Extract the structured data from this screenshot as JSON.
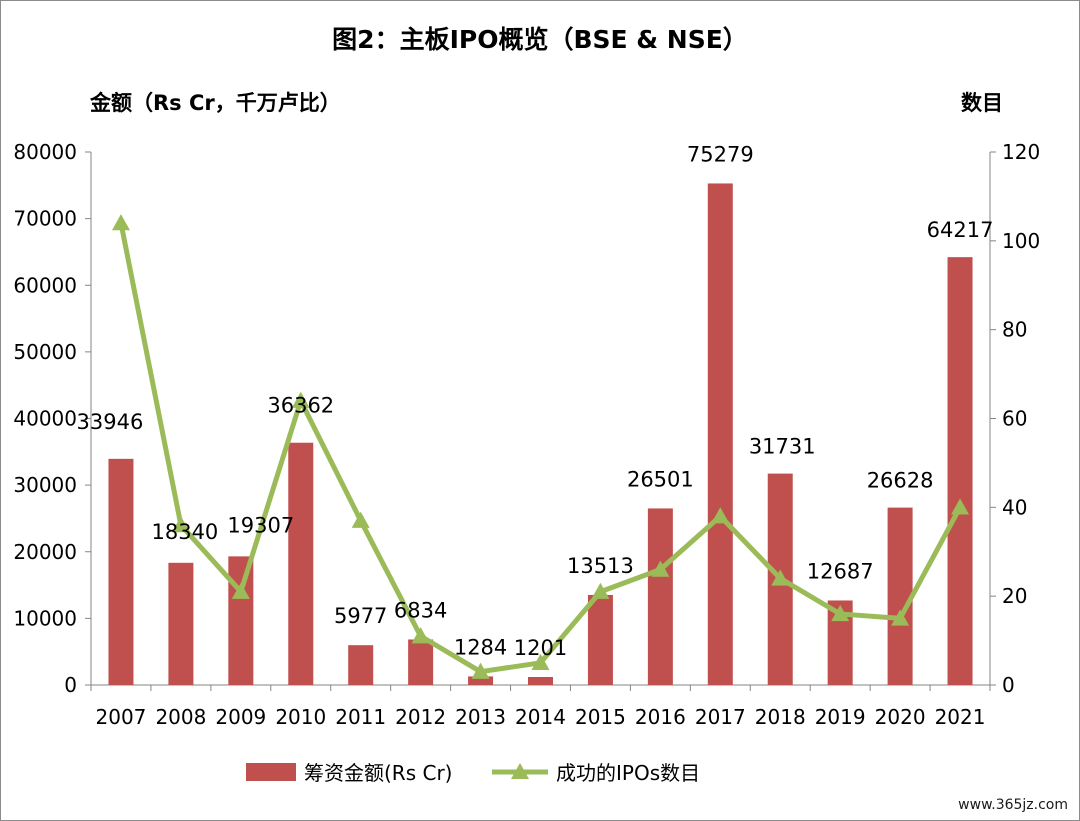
{
  "chart_data": {
    "type": "bar",
    "title": "图2：主板IPO概览（BSE & NSE）",
    "ylabel": "金额（Rs Cr，千万卢比）",
    "y2label": "数目",
    "categories": [
      "2007",
      "2008",
      "2009",
      "2010",
      "2011",
      "2012",
      "2013",
      "2014",
      "2015",
      "2016",
      "2017",
      "2018",
      "2019",
      "2020",
      "2021"
    ],
    "series": [
      {
        "name": "筹资金额(Rs Cr)",
        "type": "bar",
        "axis": "left",
        "color": "#c0504d",
        "values": [
          33946,
          18340,
          19307,
          36362,
          5977,
          6834,
          1284,
          1201,
          13513,
          26501,
          75279,
          31731,
          12687,
          26628,
          64217
        ],
        "labels": [
          "33946",
          "18340",
          "19307",
          "36362",
          "5977",
          "6834",
          "1284",
          "1201",
          "13513",
          "26501",
          "75279",
          "31731",
          "12687",
          "26628",
          "64217"
        ]
      },
      {
        "name": "成功的IPOs数目",
        "type": "line",
        "axis": "right",
        "color": "#9bbb59",
        "values": [
          104,
          36,
          21,
          64,
          37,
          11,
          3,
          5,
          21,
          26,
          38,
          24,
          16,
          15,
          40
        ]
      }
    ],
    "ylim": [
      0,
      80000
    ],
    "yticks": [
      "0",
      "10000",
      "20000",
      "30000",
      "40000",
      "50000",
      "60000",
      "70000",
      "80000"
    ],
    "y2lim": [
      0,
      120
    ],
    "y2ticks": [
      "0",
      "20",
      "40",
      "60",
      "80",
      "100",
      "120"
    ],
    "grid": false,
    "legend": "bottom"
  },
  "watermark": "www.365jz.com"
}
